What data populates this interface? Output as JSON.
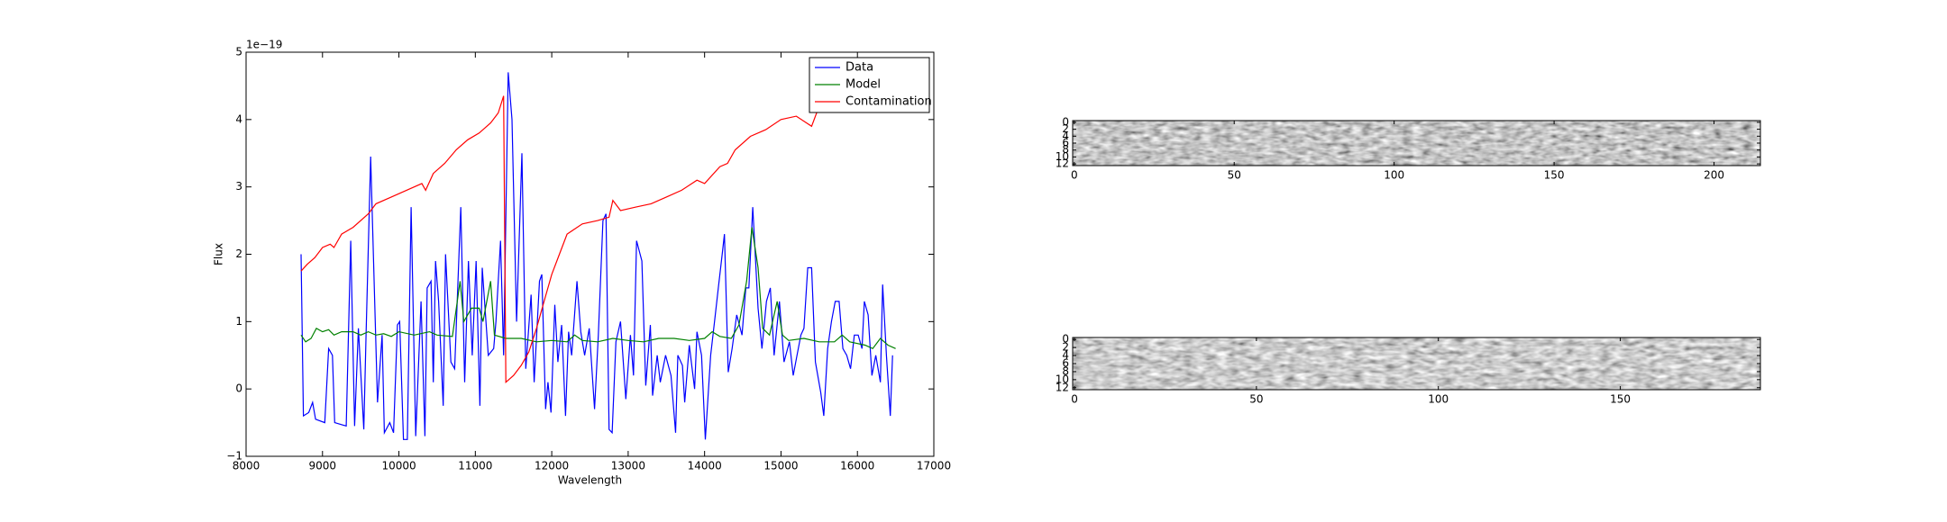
{
  "chart_data": [
    {
      "type": "line",
      "xlabel": "Wavelength",
      "ylabel": "Flux",
      "offset_text": "1e−19",
      "xlim": [
        8000,
        17000
      ],
      "xticks": [
        8000,
        9000,
        10000,
        11000,
        12000,
        13000,
        14000,
        15000,
        16000,
        17000
      ],
      "ylim": [
        -1,
        5
      ],
      "yticks": [
        {
          "value": -1,
          "label": "−1"
        },
        0,
        1,
        2,
        3,
        4,
        5
      ],
      "legend": "upper right",
      "series": [
        {
          "name": "Data",
          "color": "#0000ff",
          "x": [
            8720,
            8750,
            8820,
            8870,
            8910,
            9030,
            9080,
            9130,
            9160,
            9310,
            9370,
            9420,
            9470,
            9540,
            9570,
            9630,
            9720,
            9780,
            9810,
            9880,
            9930,
            9980,
            10010,
            10060,
            10110,
            10160,
            10220,
            10290,
            10340,
            10370,
            10420,
            10450,
            10480,
            10520,
            10580,
            10610,
            10680,
            10730,
            10810,
            10860,
            10910,
            10960,
            11010,
            11060,
            11090,
            11170,
            11240,
            11270,
            11330,
            11370,
            11430,
            11480,
            11540,
            11610,
            11660,
            11730,
            11770,
            11840,
            11870,
            11920,
            11950,
            11990,
            12040,
            12080,
            12130,
            12180,
            12220,
            12260,
            12330,
            12380,
            12430,
            12490,
            12560,
            12610,
            12670,
            12710,
            12750,
            12790,
            12840,
            12900,
            12970,
            13030,
            13070,
            13110,
            13180,
            13230,
            13290,
            13320,
            13380,
            13420,
            13490,
            13560,
            13620,
            13650,
            13710,
            13740,
            13800,
            13870,
            13900,
            13960,
            14010,
            14080,
            14130,
            14180,
            14230,
            14260,
            14310,
            14360,
            14420,
            14490,
            14540,
            14580,
            14630,
            14700,
            14750,
            14810,
            14860,
            14910,
            14980,
            15040,
            15110,
            15160,
            15210,
            15260,
            15300,
            15350,
            15400,
            15450,
            15520,
            15560,
            15610,
            15660,
            15710,
            15760,
            15810,
            15860,
            15910,
            15960,
            16010,
            16060,
            16090,
            16140,
            16190,
            16240,
            16300,
            16330,
            16380,
            16430,
            16460
          ],
          "values": [
            2.0,
            -0.4,
            -0.35,
            -0.2,
            -0.45,
            -0.5,
            0.6,
            0.5,
            -0.5,
            -0.55,
            2.2,
            -0.55,
            0.9,
            -0.6,
            0.8,
            3.45,
            -0.2,
            0.8,
            -0.65,
            -0.5,
            -0.65,
            0.95,
            1.0,
            -0.75,
            -0.75,
            2.7,
            -0.7,
            1.3,
            -0.7,
            1.5,
            1.6,
            0.1,
            1.9,
            1.3,
            -0.25,
            2.0,
            0.4,
            0.3,
            2.7,
            0.1,
            1.9,
            0.5,
            1.9,
            -0.25,
            1.8,
            0.5,
            0.6,
            1.0,
            2.2,
            0.5,
            4.7,
            4.0,
            1.0,
            3.5,
            0.3,
            1.4,
            0.1,
            1.6,
            1.7,
            -0.3,
            0.1,
            -0.35,
            1.25,
            0.4,
            0.95,
            -0.4,
            0.85,
            0.5,
            1.6,
            0.85,
            0.5,
            0.9,
            -0.3,
            0.8,
            2.5,
            2.6,
            -0.6,
            -0.65,
            0.7,
            1.0,
            -0.15,
            0.8,
            0.2,
            2.2,
            1.9,
            0.05,
            0.95,
            -0.1,
            0.5,
            0.1,
            0.5,
            0.2,
            -0.65,
            0.5,
            0.35,
            -0.2,
            0.65,
            0.0,
            0.85,
            0.5,
            -0.75,
            0.5,
            1.0,
            1.5,
            2.0,
            2.3,
            0.25,
            0.6,
            1.1,
            0.8,
            1.5,
            1.5,
            2.7,
            1.2,
            0.6,
            1.3,
            1.5,
            0.5,
            1.3,
            0.4,
            0.7,
            0.2,
            0.5,
            0.8,
            0.9,
            1.8,
            1.8,
            0.4,
            -0.05,
            -0.4,
            0.6,
            1.0,
            1.3,
            1.3,
            0.6,
            0.5,
            0.3,
            0.8,
            0.8,
            0.6,
            1.3,
            1.1,
            0.2,
            0.5,
            0.1,
            1.55,
            0.5,
            -0.4,
            0.5
          ]
        },
        {
          "name": "Model",
          "color": "#008000",
          "x": [
            8720,
            8780,
            8850,
            8920,
            9000,
            9080,
            9150,
            9250,
            9400,
            9500,
            9600,
            9700,
            9800,
            9900,
            10000,
            10200,
            10400,
            10500,
            10700,
            10800,
            10850,
            10950,
            11050,
            11100,
            11200,
            11250,
            11400,
            11600,
            11800,
            12000,
            12200,
            12300,
            12400,
            12600,
            12800,
            13000,
            13200,
            13400,
            13600,
            13800,
            14000,
            14100,
            14200,
            14350,
            14450,
            14550,
            14620,
            14700,
            14760,
            14850,
            14950,
            15020,
            15100,
            15300,
            15500,
            15700,
            15800,
            15900,
            16100,
            16200,
            16300,
            16400,
            16500
          ],
          "values": [
            0.8,
            0.7,
            0.75,
            0.9,
            0.85,
            0.88,
            0.8,
            0.85,
            0.85,
            0.8,
            0.85,
            0.8,
            0.82,
            0.78,
            0.85,
            0.8,
            0.85,
            0.8,
            0.78,
            1.6,
            1.0,
            1.2,
            1.2,
            1.0,
            1.6,
            0.8,
            0.75,
            0.75,
            0.7,
            0.72,
            0.7,
            0.8,
            0.72,
            0.7,
            0.75,
            0.72,
            0.7,
            0.75,
            0.75,
            0.72,
            0.75,
            0.85,
            0.78,
            0.75,
            0.95,
            1.6,
            2.4,
            1.8,
            0.9,
            0.8,
            1.3,
            0.8,
            0.72,
            0.75,
            0.7,
            0.7,
            0.8,
            0.7,
            0.65,
            0.6,
            0.75,
            0.65,
            0.6
          ]
        },
        {
          "name": "Contamination",
          "color": "#ff0000",
          "x": [
            8720,
            8800,
            8900,
            9000,
            9100,
            9150,
            9250,
            9400,
            9600,
            9700,
            9900,
            10100,
            10300,
            10350,
            10450,
            10600,
            10750,
            10900,
            11050,
            11200,
            11300,
            11370,
            11400,
            11500,
            11600,
            11700,
            11800,
            11900,
            12000,
            12100,
            12200,
            12400,
            12600,
            12750,
            12800,
            12900,
            13100,
            13300,
            13500,
            13700,
            13900,
            14000,
            14200,
            14300,
            14400,
            14600,
            14800,
            15000,
            15200,
            15400,
            15500,
            15600
          ],
          "values": [
            1.75,
            1.85,
            1.95,
            2.1,
            2.15,
            2.1,
            2.3,
            2.4,
            2.6,
            2.75,
            2.85,
            2.95,
            3.05,
            2.95,
            3.2,
            3.35,
            3.55,
            3.7,
            3.8,
            3.95,
            4.1,
            4.35,
            0.1,
            0.2,
            0.35,
            0.55,
            0.9,
            1.3,
            1.7,
            2.0,
            2.3,
            2.45,
            2.5,
            2.55,
            2.8,
            2.65,
            2.7,
            2.75,
            2.85,
            2.95,
            3.1,
            3.05,
            3.3,
            3.35,
            3.55,
            3.75,
            3.85,
            4.0,
            4.05,
            3.9,
            4.2,
            4.4
          ]
        }
      ]
    },
    {
      "type": "image",
      "xlim": [
        -0.5,
        214.5
      ],
      "xticks": [
        0,
        50,
        100,
        150,
        200
      ],
      "ylim": [
        12.5,
        -0.5
      ],
      "yticks": [
        0,
        2,
        4,
        6,
        8,
        10,
        12
      ]
    },
    {
      "type": "image",
      "xlim": [
        -0.5,
        188.5
      ],
      "xticks": [
        0,
        50,
        100,
        150
      ],
      "ylim": [
        12.5,
        -0.5
      ],
      "yticks": [
        0,
        2,
        4,
        6,
        8,
        10,
        12
      ]
    }
  ]
}
